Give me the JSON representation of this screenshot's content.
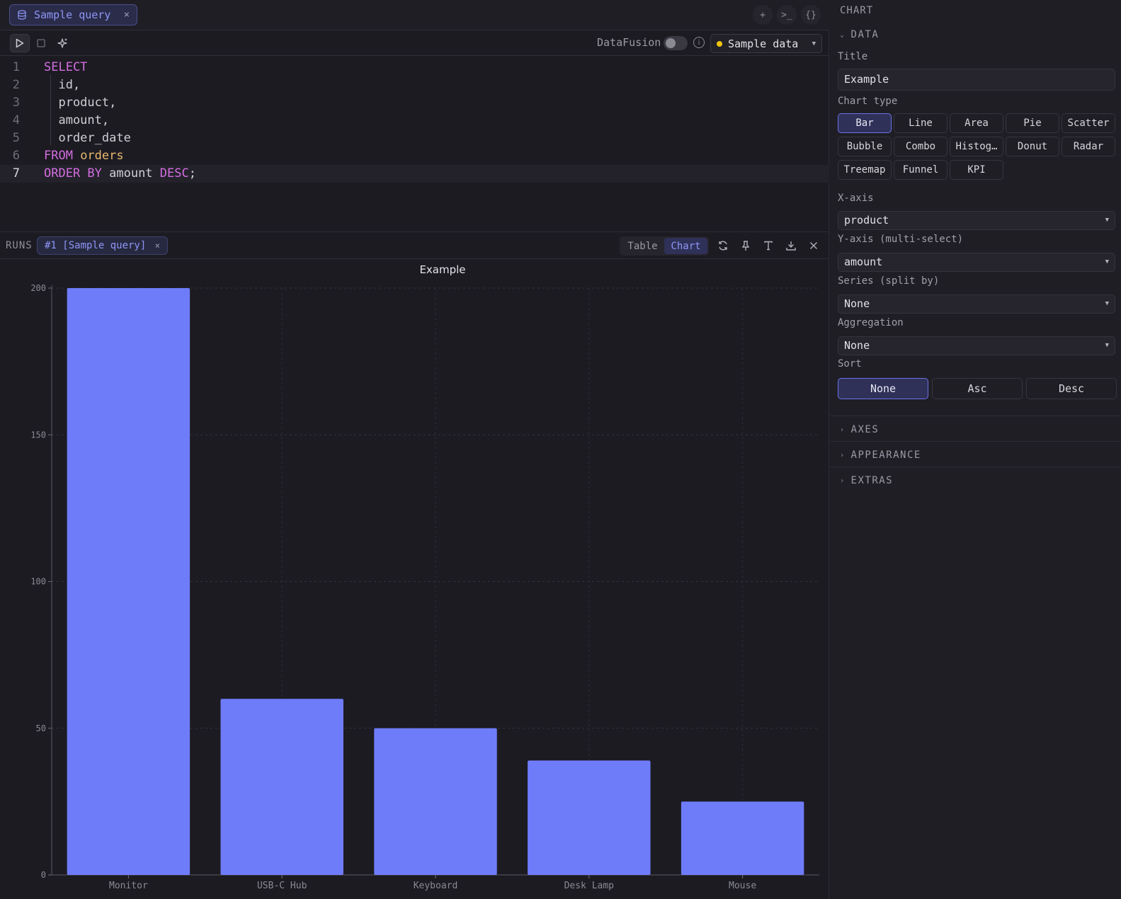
{
  "tab": {
    "label": "Sample query",
    "close": "×"
  },
  "tab_actions": [
    "+",
    ">_",
    "{}"
  ],
  "toolbar": {
    "engine_label": "DataFusion",
    "source_label": "Sample data",
    "info": "i"
  },
  "editor": {
    "lines": [
      {
        "n": "1",
        "tokens": [
          {
            "t": "SELECT",
            "c": "kw"
          }
        ]
      },
      {
        "n": "2",
        "tokens": [
          {
            "t": "  id,",
            "c": ""
          }
        ]
      },
      {
        "n": "3",
        "tokens": [
          {
            "t": "  product,",
            "c": ""
          }
        ]
      },
      {
        "n": "4",
        "tokens": [
          {
            "t": "  amount,",
            "c": ""
          }
        ]
      },
      {
        "n": "5",
        "tokens": [
          {
            "t": "  order_date",
            "c": ""
          }
        ]
      },
      {
        "n": "6",
        "tokens": [
          {
            "t": "FROM ",
            "c": "kw"
          },
          {
            "t": "orders",
            "c": "tbl"
          }
        ]
      },
      {
        "n": "7",
        "tokens": [
          {
            "t": "ORDER BY",
            "c": "kw"
          },
          {
            "t": " amount ",
            "c": ""
          },
          {
            "t": "DESC",
            "c": "kw"
          },
          {
            "t": ";",
            "c": ""
          }
        ]
      }
    ],
    "active_line": 7
  },
  "runs": {
    "label": "RUNS",
    "chip": "#1 [Sample query]",
    "close": "×",
    "view_table": "Table",
    "view_chart": "Chart"
  },
  "chart_data": {
    "type": "bar",
    "title": "Example",
    "categories": [
      "Monitor",
      "USB-C Hub",
      "Keyboard",
      "Desk Lamp",
      "Mouse"
    ],
    "values": [
      200,
      60,
      50,
      39,
      25
    ],
    "ylim": [
      0,
      200
    ],
    "yticks": [
      0,
      50,
      100,
      150,
      200
    ],
    "color": "#6f7cfa",
    "grid": true
  },
  "panel": {
    "title": "CHART",
    "data_section": "DATA",
    "title_label": "Title",
    "title_value": "Example",
    "chart_type_label": "Chart type",
    "chart_types": [
      "Bar",
      "Line",
      "Area",
      "Pie",
      "Scatter",
      "Bubble",
      "Combo",
      "Histog…",
      "Donut",
      "Radar",
      "Treemap",
      "Funnel",
      "KPI"
    ],
    "selected_type": "Bar",
    "xaxis_label": "X-axis",
    "xaxis_value": "product",
    "yaxis_label": "Y-axis (multi-select)",
    "yaxis_value": "amount",
    "series_label": "Series (split by)",
    "series_value": "None",
    "aggregation_label": "Aggregation",
    "aggregation_value": "None",
    "sort_label": "Sort",
    "sort_options": [
      "None",
      "Asc",
      "Desc"
    ],
    "sort_selected": "None",
    "collapsed_sections": [
      "AXES",
      "APPEARANCE",
      "EXTRAS"
    ]
  }
}
